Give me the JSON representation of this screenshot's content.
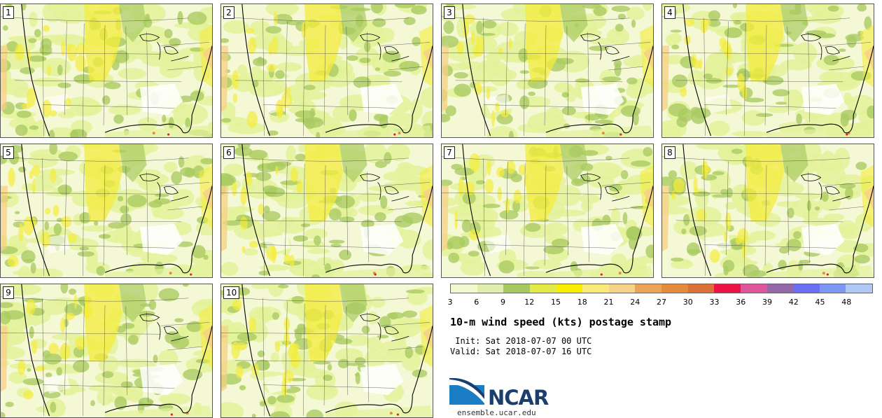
{
  "colors": {
    "land_base": "#f4f8d4",
    "calm": "#ffffff",
    "moderate": "#e3f29a",
    "fresh": "#aacb62",
    "strong": "#f4ec3c",
    "gale": "#f6d086",
    "storm": "#e58b44",
    "state_lines": "#444444",
    "coast": "#000000"
  },
  "panels": [
    {
      "member": "1"
    },
    {
      "member": "2"
    },
    {
      "member": "3"
    },
    {
      "member": "4"
    },
    {
      "member": "5"
    },
    {
      "member": "6"
    },
    {
      "member": "7"
    },
    {
      "member": "8"
    },
    {
      "member": "9"
    },
    {
      "member": "10"
    }
  ],
  "colorbar": {
    "colors": [
      "#f3f8cf",
      "#dfeeaa",
      "#a8c95e",
      "#e3ea48",
      "#f9ee00",
      "#fbe87a",
      "#f5d388",
      "#e9a45a",
      "#e48a3c",
      "#d97035",
      "#ee1144",
      "#e0569c",
      "#9467a8",
      "#6a6ef0",
      "#7d98f4",
      "#b0c8f6"
    ],
    "ticks": [
      "3",
      "6",
      "9",
      "12",
      "15",
      "18",
      "21",
      "24",
      "27",
      "30",
      "33",
      "36",
      "39",
      "42",
      "45",
      "48"
    ]
  },
  "title": "10-m wind speed (kts) postage stamp",
  "init_text": " Init: Sat 2018-07-07 00 UTC",
  "valid_text": "Valid: Sat 2018-07-07 16 UTC",
  "logo_text": "NCAR",
  "url": "ensemble.ucar.edu"
}
